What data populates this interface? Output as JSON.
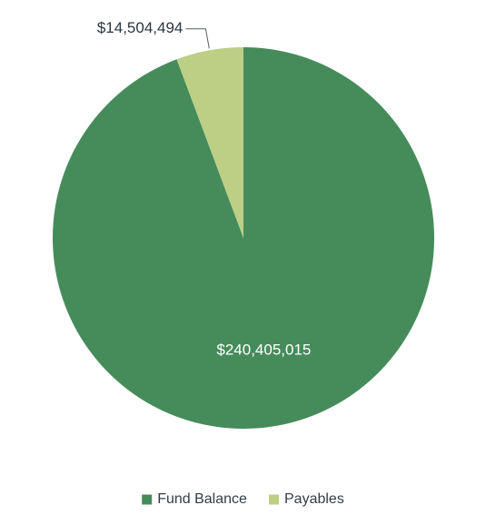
{
  "chart_data": {
    "type": "pie",
    "start_angle_deg": 0,
    "direction": "clockwise",
    "legend_position": "bottom",
    "slices": [
      {
        "name": "Fund Balance",
        "value": 240405015,
        "label": "$240,405,015",
        "color": "#468c5b",
        "label_color": "#ffffff",
        "label_placement": "inside"
      },
      {
        "name": "Payables",
        "value": 14504494,
        "label": "$14,504,494",
        "color": "#bccf85",
        "label_color": "#2b3540",
        "label_placement": "outside"
      }
    ]
  }
}
